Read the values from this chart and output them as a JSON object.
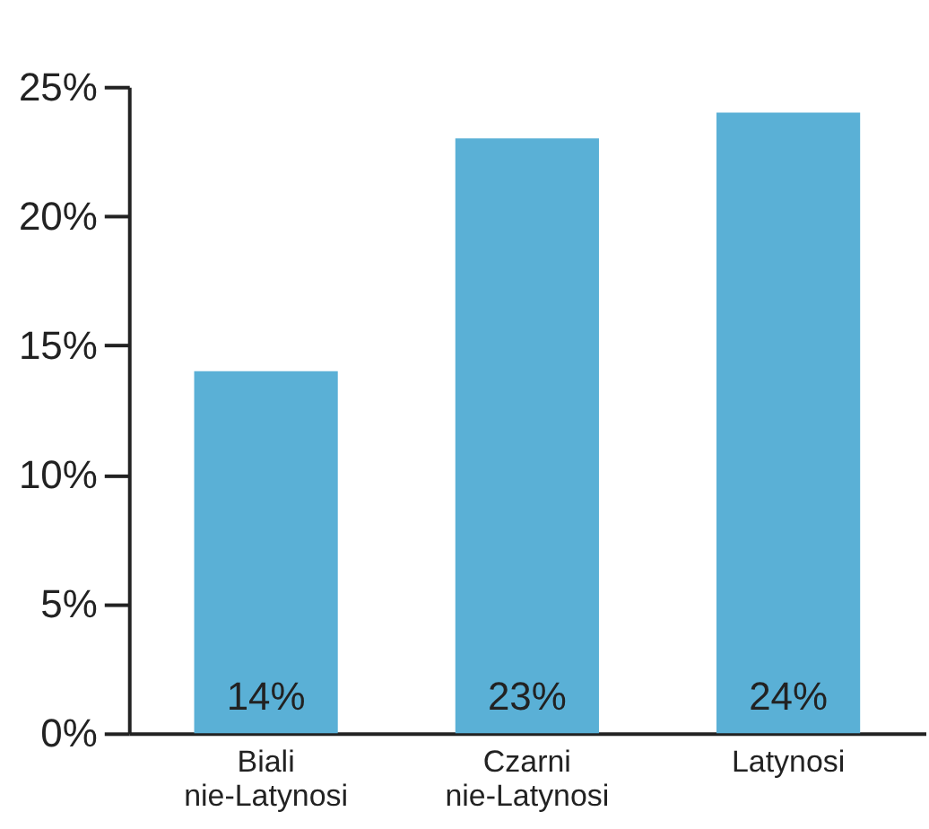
{
  "chart_data": {
    "type": "bar",
    "categories": [
      "Biali nie-Latynosi",
      "Czarni nie-Latynosi",
      "Latynosi"
    ],
    "values": [
      14,
      23,
      24
    ],
    "color": "#5ab0d6",
    "value_labels": [
      "14%",
      "23%",
      "24%"
    ],
    "ylim": [
      0,
      25
    ],
    "yticks": [
      {
        "value": 0,
        "label": "0%"
      },
      {
        "value": 5,
        "label": "5%"
      },
      {
        "value": 10,
        "label": "10%"
      },
      {
        "value": 15,
        "label": "15%"
      },
      {
        "value": 20,
        "label": "20%"
      },
      {
        "value": 25,
        "label": "25%"
      }
    ],
    "grid": false
  }
}
